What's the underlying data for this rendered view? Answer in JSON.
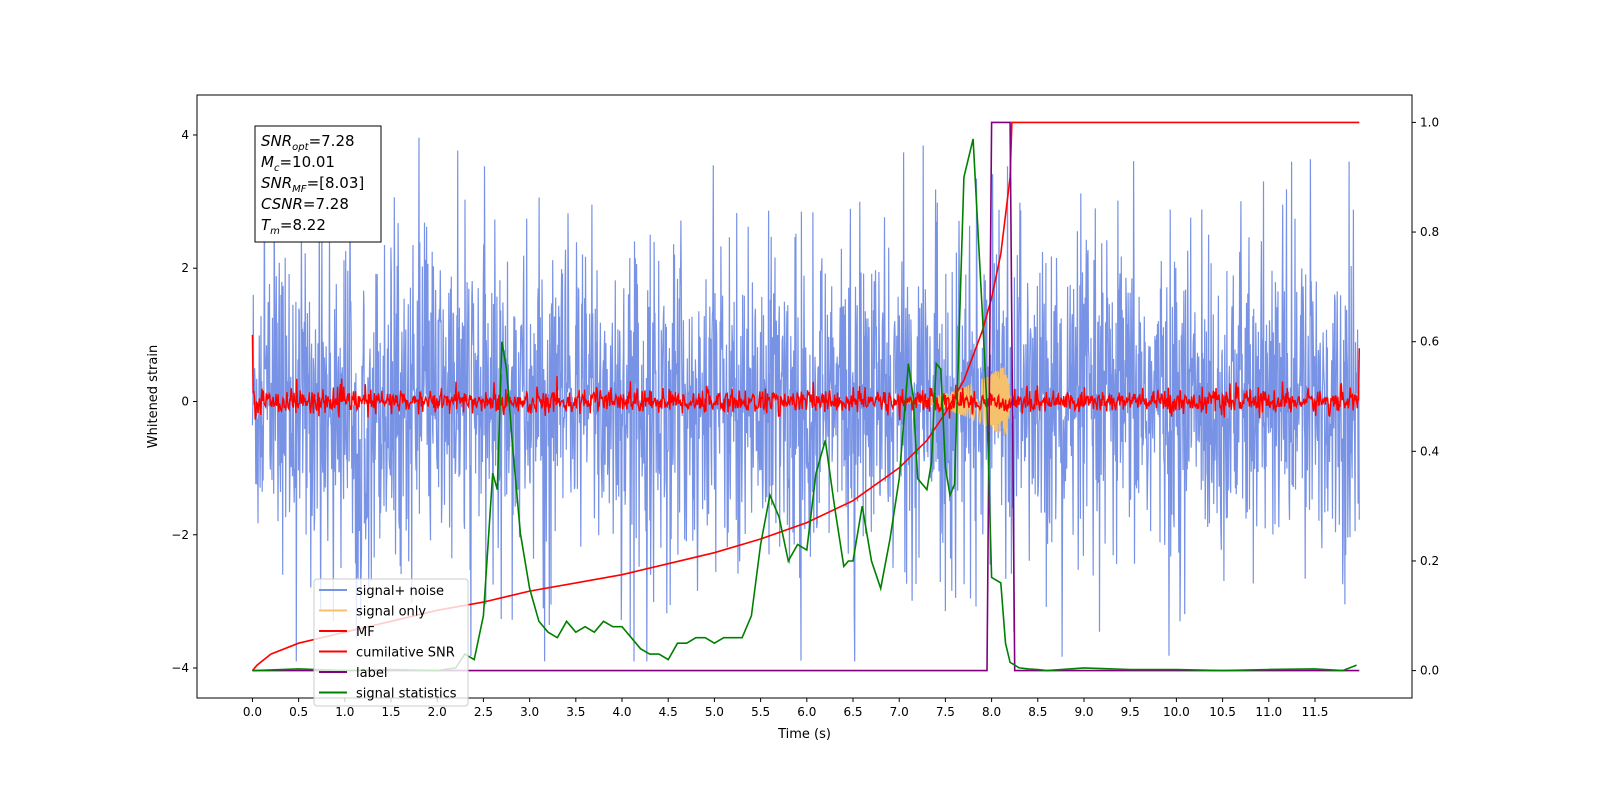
{
  "chart_data": {
    "type": "line",
    "xlabel": "Time (s)",
    "ylabel": "Whitened strain",
    "xlim": [
      -0.6,
      12.55
    ],
    "ylim": [
      -4.45,
      4.6
    ],
    "ylim_right": [
      -0.05,
      1.05
    ],
    "x_ticks": [
      0.0,
      0.5,
      1.0,
      1.5,
      2.0,
      2.5,
      3.0,
      3.5,
      4.0,
      4.5,
      5.0,
      5.5,
      6.0,
      6.5,
      7.0,
      7.5,
      8.0,
      8.5,
      9.0,
      9.5,
      10.0,
      10.5,
      11.0,
      11.5
    ],
    "x_tick_labels": [
      "0.0",
      "0.5",
      "1.0",
      "1.5",
      "2.0",
      "2.5",
      "3.0",
      "3.5",
      "4.0",
      "4.5",
      "5.0",
      "5.5",
      "6.0",
      "6.5",
      "7.0",
      "7.5",
      "8.0",
      "8.5",
      "9.0",
      "9.5",
      "10.0",
      "10.5",
      "11.0",
      "11.5"
    ],
    "y_ticks": [
      -4,
      -2,
      0,
      2,
      4
    ],
    "y_tick_labels": [
      "−4",
      "−2",
      "0",
      "2",
      "4"
    ],
    "y2_ticks": [
      0.0,
      0.2,
      0.4,
      0.6,
      0.8,
      1.0
    ],
    "y2_tick_labels": [
      "0.0",
      "0.2",
      "0.4",
      "0.6",
      "0.8",
      "1.0"
    ],
    "legend_placement": "lower-left",
    "grid": false,
    "annotation": {
      "lines": [
        {
          "main": "SNR",
          "sub": "opt",
          "rest": "=7.28"
        },
        {
          "main": "M",
          "sub": "c",
          "rest": "=10.01"
        },
        {
          "main": "SNR",
          "sub": "MF",
          "rest": "=[8.03]"
        },
        {
          "main": "CSNR",
          "sub": "",
          "rest": "=7.28"
        },
        {
          "main": "T",
          "sub": "m",
          "rest": "=8.22"
        }
      ]
    },
    "series": [
      {
        "name": "signal+ noise",
        "axis": "left",
        "color": "#7893e6",
        "kind": "noise",
        "x_range": [
          0.0,
          11.98
        ],
        "envelope": [
          -2.5,
          2.5
        ],
        "spike_max": 4.15,
        "spike_min": -3.9
      },
      {
        "name": "signal only",
        "axis": "left",
        "color": "#f5c16c",
        "kind": "chirp",
        "x_range": [
          6.9,
          8.22
        ],
        "amplitude_peak": 0.6
      },
      {
        "name": "MF",
        "axis": "left",
        "color": "#ff0000",
        "kind": "noise",
        "x_range": [
          0.0,
          11.98
        ],
        "envelope": [
          -0.25,
          0.3
        ],
        "start_value": 1.0,
        "end_value": 0.8
      },
      {
        "name": "cumilative SNR",
        "axis": "right",
        "color": "#ff0000",
        "x": [
          0.0,
          0.05,
          0.2,
          0.5,
          1.0,
          1.5,
          2.0,
          2.5,
          3.0,
          3.5,
          4.0,
          4.5,
          5.0,
          5.5,
          6.0,
          6.5,
          7.0,
          7.3,
          7.5,
          7.7,
          7.9,
          8.0,
          8.1,
          8.2,
          8.22,
          11.98
        ],
        "y": [
          0.0,
          0.01,
          0.03,
          0.05,
          0.07,
          0.09,
          0.11,
          0.125,
          0.145,
          0.16,
          0.175,
          0.195,
          0.215,
          0.24,
          0.27,
          0.31,
          0.37,
          0.42,
          0.47,
          0.53,
          0.62,
          0.68,
          0.76,
          0.9,
          1.0,
          1.0
        ]
      },
      {
        "name": "label",
        "axis": "right",
        "color": "#800080",
        "x": [
          0.0,
          7.95,
          8.0,
          8.2,
          8.25,
          11.98
        ],
        "y": [
          0.0,
          0.0,
          1.0,
          1.0,
          0.0,
          0.0
        ]
      },
      {
        "name": "signal statistics",
        "axis": "right",
        "color": "#008000",
        "x": [
          0.0,
          0.5,
          1.0,
          1.5,
          2.0,
          2.2,
          2.3,
          2.4,
          2.5,
          2.6,
          2.65,
          2.7,
          2.75,
          2.82,
          2.9,
          3.0,
          3.1,
          3.2,
          3.3,
          3.4,
          3.5,
          3.6,
          3.7,
          3.8,
          3.9,
          4.0,
          4.1,
          4.2,
          4.3,
          4.4,
          4.5,
          4.6,
          4.7,
          4.8,
          4.9,
          5.0,
          5.1,
          5.2,
          5.3,
          5.4,
          5.5,
          5.6,
          5.7,
          5.8,
          5.9,
          6.0,
          6.1,
          6.2,
          6.3,
          6.4,
          6.45,
          6.5,
          6.6,
          6.7,
          6.8,
          6.9,
          7.0,
          7.1,
          7.15,
          7.2,
          7.3,
          7.35,
          7.4,
          7.45,
          7.5,
          7.55,
          7.6,
          7.7,
          7.8,
          7.9,
          7.95,
          8.0,
          8.1,
          8.15,
          8.2,
          8.25,
          8.3,
          8.4,
          8.5,
          8.6,
          9.0,
          9.5,
          10.0,
          10.5,
          11.0,
          11.5,
          11.8,
          11.95
        ],
        "y": [
          0.0,
          0.003,
          0.0,
          0.002,
          0.0,
          0.005,
          0.03,
          0.02,
          0.1,
          0.36,
          0.33,
          0.6,
          0.55,
          0.4,
          0.25,
          0.15,
          0.09,
          0.07,
          0.06,
          0.09,
          0.07,
          0.08,
          0.07,
          0.09,
          0.08,
          0.08,
          0.06,
          0.04,
          0.03,
          0.03,
          0.02,
          0.05,
          0.05,
          0.06,
          0.06,
          0.05,
          0.06,
          0.06,
          0.06,
          0.1,
          0.23,
          0.32,
          0.28,
          0.2,
          0.23,
          0.22,
          0.36,
          0.42,
          0.3,
          0.19,
          0.2,
          0.2,
          0.3,
          0.2,
          0.15,
          0.24,
          0.35,
          0.56,
          0.5,
          0.35,
          0.33,
          0.38,
          0.56,
          0.55,
          0.37,
          0.32,
          0.34,
          0.9,
          0.97,
          0.65,
          0.48,
          0.17,
          0.16,
          0.05,
          0.015,
          0.01,
          0.005,
          0.003,
          0.002,
          0.0,
          0.005,
          0.002,
          0.002,
          0.0,
          0.002,
          0.003,
          0.0,
          0.01
        ]
      }
    ]
  }
}
